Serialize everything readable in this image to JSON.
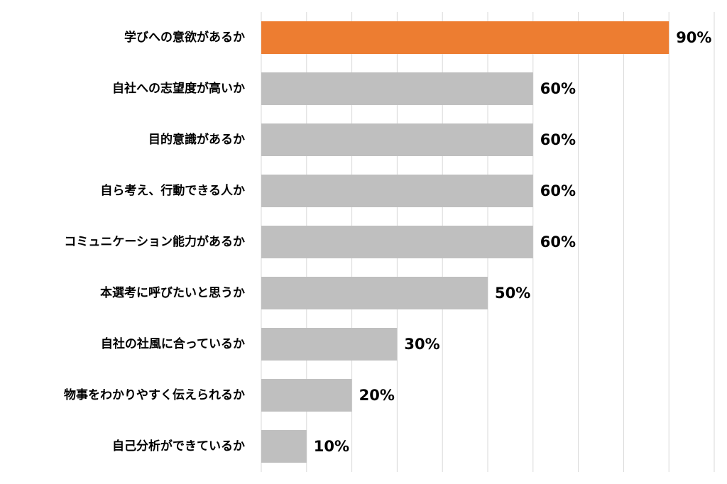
{
  "chart_data": {
    "type": "barh",
    "categories": [
      "学びへの意欲があるか",
      "自社への志望度が高いか",
      "目的意識があるか",
      "自ら考え、行動できる人か",
      "コミュニケーション能力があるか",
      "本選考に呼びたいと思うか",
      "自社の社風に合っているか",
      "物事をわかりやすく伝えられるか",
      "自己分析ができているか"
    ],
    "values": [
      90,
      60,
      60,
      60,
      60,
      50,
      30,
      20,
      10
    ],
    "value_labels": [
      "90%",
      "60%",
      "60%",
      "60%",
      "60%",
      "50%",
      "30%",
      "20%",
      "10%"
    ],
    "colors": [
      "#ed7d31",
      "#bfbfbf",
      "#bfbfbf",
      "#bfbfbf",
      "#bfbfbf",
      "#bfbfbf",
      "#bfbfbf",
      "#bfbfbf",
      "#bfbfbf"
    ],
    "xlim": [
      0,
      100
    ],
    "xticks": [
      0,
      10,
      20,
      30,
      40,
      50,
      60,
      70,
      80,
      90,
      100
    ],
    "grid": true
  }
}
